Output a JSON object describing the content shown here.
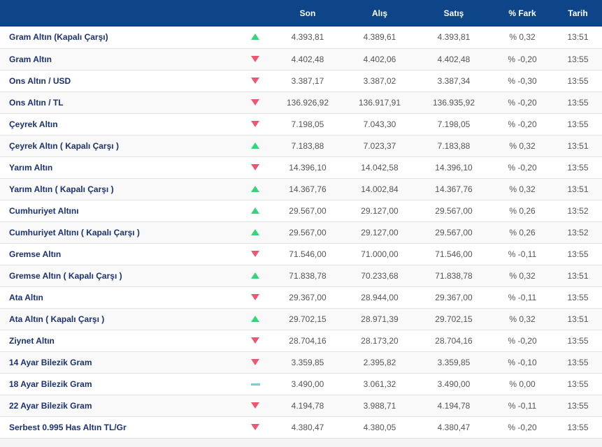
{
  "colors": {
    "header_bg": "#0d4588",
    "up": "#39d47a",
    "down": "#ec5773",
    "flat": "#72d0de",
    "name_text": "#1b3270"
  },
  "headers": {
    "name": "",
    "dir": "",
    "son": "Son",
    "alis": "Alış",
    "satis": "Satış",
    "fark": "% Fark",
    "tarih": "Tarih"
  },
  "rows": [
    {
      "name": "Gram Altın (Kapalı Çarşı)",
      "dir": "up",
      "son": "4.393,81",
      "alis": "4.389,61",
      "satis": "4.393,81",
      "fark": "% 0,32",
      "tarih": "13:51"
    },
    {
      "name": "Gram Altın",
      "dir": "down",
      "son": "4.402,48",
      "alis": "4.402,06",
      "satis": "4.402,48",
      "fark": "% -0,20",
      "tarih": "13:55"
    },
    {
      "name": "Ons Altın / USD",
      "dir": "down",
      "son": "3.387,17",
      "alis": "3.387,02",
      "satis": "3.387,34",
      "fark": "% -0,30",
      "tarih": "13:55"
    },
    {
      "name": "Ons Altın / TL",
      "dir": "down",
      "son": "136.926,92",
      "alis": "136.917,91",
      "satis": "136.935,92",
      "fark": "% -0,20",
      "tarih": "13:55"
    },
    {
      "name": "Çeyrek Altın",
      "dir": "down",
      "son": "7.198,05",
      "alis": "7.043,30",
      "satis": "7.198,05",
      "fark": "% -0,20",
      "tarih": "13:55"
    },
    {
      "name": "Çeyrek Altın ( Kapalı Çarşı )",
      "dir": "up",
      "son": "7.183,88",
      "alis": "7.023,37",
      "satis": "7.183,88",
      "fark": "% 0,32",
      "tarih": "13:51"
    },
    {
      "name": "Yarım Altın",
      "dir": "down",
      "son": "14.396,10",
      "alis": "14.042,58",
      "satis": "14.396,10",
      "fark": "% -0,20",
      "tarih": "13:55"
    },
    {
      "name": "Yarım Altın ( Kapalı Çarşı )",
      "dir": "up",
      "son": "14.367,76",
      "alis": "14.002,84",
      "satis": "14.367,76",
      "fark": "% 0,32",
      "tarih": "13:51"
    },
    {
      "name": "Cumhuriyet Altını",
      "dir": "up",
      "son": "29.567,00",
      "alis": "29.127,00",
      "satis": "29.567,00",
      "fark": "% 0,26",
      "tarih": "13:52"
    },
    {
      "name": "Cumhuriyet Altını ( Kapalı Çarşı )",
      "dir": "up",
      "son": "29.567,00",
      "alis": "29.127,00",
      "satis": "29.567,00",
      "fark": "% 0,26",
      "tarih": "13:52"
    },
    {
      "name": "Gremse Altın",
      "dir": "down",
      "son": "71.546,00",
      "alis": "71.000,00",
      "satis": "71.546,00",
      "fark": "% -0,11",
      "tarih": "13:55"
    },
    {
      "name": "Gremse Altın ( Kapalı Çarşı )",
      "dir": "up",
      "son": "71.838,78",
      "alis": "70.233,68",
      "satis": "71.838,78",
      "fark": "% 0,32",
      "tarih": "13:51"
    },
    {
      "name": "Ata Altın",
      "dir": "down",
      "son": "29.367,00",
      "alis": "28.944,00",
      "satis": "29.367,00",
      "fark": "% -0,11",
      "tarih": "13:55"
    },
    {
      "name": "Ata Altın ( Kapalı Çarşı )",
      "dir": "up",
      "son": "29.702,15",
      "alis": "28.971,39",
      "satis": "29.702,15",
      "fark": "% 0,32",
      "tarih": "13:51"
    },
    {
      "name": "Ziynet Altın",
      "dir": "down",
      "son": "28.704,16",
      "alis": "28.173,20",
      "satis": "28.704,16",
      "fark": "% -0,20",
      "tarih": "13:55"
    },
    {
      "name": "14 Ayar Bilezik Gram",
      "dir": "down",
      "son": "3.359,85",
      "alis": "2.395,82",
      "satis": "3.359,85",
      "fark": "% -0,10",
      "tarih": "13:55"
    },
    {
      "name": "18 Ayar Bilezik Gram",
      "dir": "flat",
      "son": "3.490,00",
      "alis": "3.061,32",
      "satis": "3.490,00",
      "fark": "% 0,00",
      "tarih": "13:55"
    },
    {
      "name": "22 Ayar Bilezik Gram",
      "dir": "down",
      "son": "4.194,78",
      "alis": "3.988,71",
      "satis": "4.194,78",
      "fark": "% -0,11",
      "tarih": "13:55"
    },
    {
      "name": "Serbest 0.995 Has Altın TL/Gr",
      "dir": "down",
      "son": "4.380,47",
      "alis": "4.380,05",
      "satis": "4.380,47",
      "fark": "% -0,20",
      "tarih": "13:55"
    }
  ]
}
